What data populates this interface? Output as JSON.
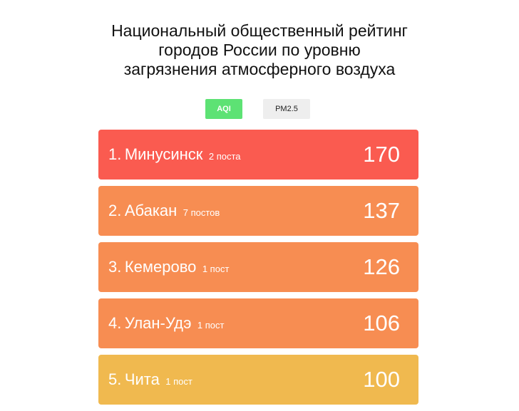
{
  "title": {
    "line1": "Национальный общественный рейтинг",
    "line2": "городов России по уровню",
    "line3": "загрязнения атмосферного воздуха"
  },
  "tabs": [
    {
      "label": "AQI",
      "active": true,
      "color": "#5de274"
    },
    {
      "label": "PM2.5",
      "active": false,
      "color": "#eeeeee"
    }
  ],
  "colors": {
    "high": "#fa5b50",
    "mid": "#f78d52",
    "low": "#f0b94f"
  },
  "ranking": [
    {
      "rank": "1.",
      "city": "Минусинск",
      "stations": "2 поста",
      "value": "170",
      "level": "high"
    },
    {
      "rank": "2.",
      "city": "Абакан",
      "stations": "7 постов",
      "value": "137",
      "level": "mid"
    },
    {
      "rank": "3.",
      "city": "Кемерово",
      "stations": "1 пост",
      "value": "126",
      "level": "mid"
    },
    {
      "rank": "4.",
      "city": "Улан-Удэ",
      "stations": "1 пост",
      "value": "106",
      "level": "mid"
    },
    {
      "rank": "5.",
      "city": "Чита",
      "stations": "1 пост",
      "value": "100",
      "level": "low"
    }
  ]
}
